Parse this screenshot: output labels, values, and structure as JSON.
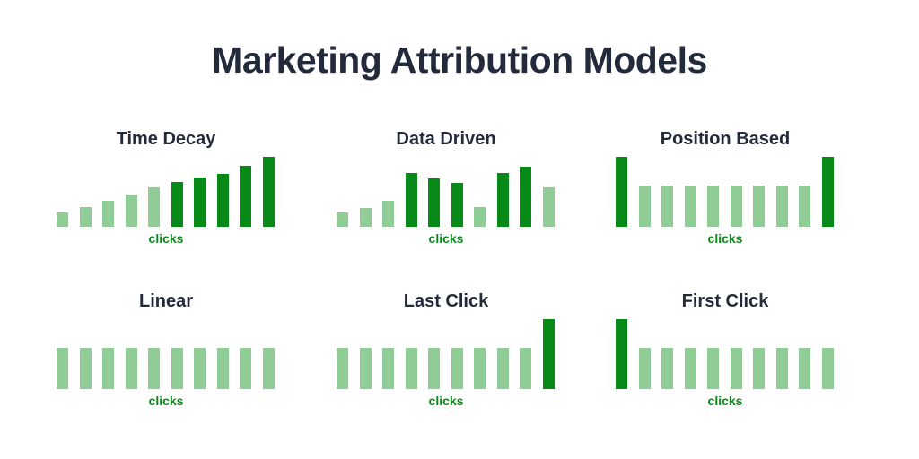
{
  "title": "Marketing Attribution Models",
  "colors": {
    "light": "#8fcc96",
    "dark": "#078a17",
    "text": "#232a3b"
  },
  "chart_data": [
    {
      "type": "bar",
      "title": "Time Decay",
      "xlabel": "clicks",
      "values": [
        16,
        22,
        29,
        36,
        43,
        49,
        54,
        58,
        67,
        77
      ],
      "emphasis": [
        "light",
        "light",
        "light",
        "light",
        "light",
        "dark",
        "dark",
        "dark",
        "dark",
        "dark"
      ]
    },
    {
      "type": "bar",
      "title": "Data Driven",
      "xlabel": "clicks",
      "values": [
        16,
        21,
        29,
        59,
        53,
        48,
        22,
        59,
        66,
        43
      ],
      "emphasis": [
        "light",
        "light",
        "light",
        "dark",
        "dark",
        "dark",
        "light",
        "dark",
        "dark",
        "light"
      ]
    },
    {
      "type": "bar",
      "title": "Position Based",
      "xlabel": "clicks",
      "values": [
        77,
        45,
        45,
        45,
        45,
        45,
        45,
        45,
        45,
        77
      ],
      "emphasis": [
        "dark",
        "light",
        "light",
        "light",
        "light",
        "light",
        "light",
        "light",
        "light",
        "dark"
      ]
    },
    {
      "type": "bar",
      "title": "Linear",
      "xlabel": "clicks",
      "values": [
        45,
        45,
        45,
        45,
        45,
        45,
        45,
        45,
        45,
        45
      ],
      "emphasis": [
        "light",
        "light",
        "light",
        "light",
        "light",
        "light",
        "light",
        "light",
        "light",
        "light"
      ]
    },
    {
      "type": "bar",
      "title": "Last Click",
      "xlabel": "clicks",
      "values": [
        45,
        45,
        45,
        45,
        45,
        45,
        45,
        45,
        45,
        77
      ],
      "emphasis": [
        "light",
        "light",
        "light",
        "light",
        "light",
        "light",
        "light",
        "light",
        "light",
        "dark"
      ]
    },
    {
      "type": "bar",
      "title": "First Click",
      "xlabel": "clicks",
      "values": [
        77,
        45,
        45,
        45,
        45,
        45,
        45,
        45,
        45,
        45
      ],
      "emphasis": [
        "dark",
        "light",
        "light",
        "light",
        "light",
        "light",
        "light",
        "light",
        "light",
        "light"
      ]
    }
  ]
}
